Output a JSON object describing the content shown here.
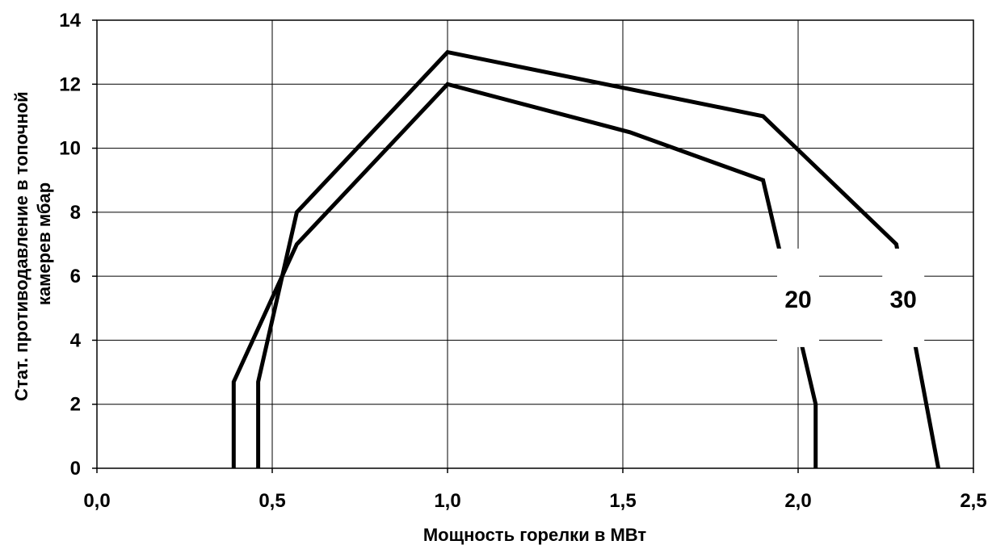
{
  "chart_data": {
    "type": "line",
    "title": "",
    "xlabel": "Мощность горелки в МВт",
    "ylabel_lines": [
      "Стат. противодавление в топочной",
      "камерев мбар"
    ],
    "xlim": [
      0,
      2.5
    ],
    "ylim": [
      0,
      14
    ],
    "x_ticks": [
      0,
      0.5,
      1.0,
      1.5,
      2.0,
      2.5
    ],
    "x_tick_labels": [
      "0,0",
      "0,5",
      "1,0",
      "1,5",
      "2,0",
      "2,5"
    ],
    "y_ticks": [
      0,
      2,
      4,
      6,
      8,
      10,
      12,
      14
    ],
    "y_tick_labels": [
      "0",
      "2",
      "4",
      "6",
      "8",
      "10",
      "12",
      "14"
    ],
    "grid": true,
    "legend": "none",
    "line_color": "#000000",
    "series": [
      {
        "name": "20",
        "x": [
          0.39,
          0.39,
          0.57,
          1.0,
          1.52,
          1.9,
          2.05,
          2.05
        ],
        "y": [
          0,
          2.7,
          7.0,
          12.0,
          10.5,
          9.0,
          2.0,
          0
        ],
        "label_at": [
          2.0,
          5.3
        ]
      },
      {
        "name": "30",
        "x": [
          0.46,
          0.46,
          0.57,
          1.0,
          1.9,
          2.28,
          2.4
        ],
        "y": [
          0,
          2.7,
          8.0,
          13.0,
          11.0,
          7.0,
          0
        ],
        "label_at": [
          2.3,
          5.3
        ]
      }
    ]
  }
}
